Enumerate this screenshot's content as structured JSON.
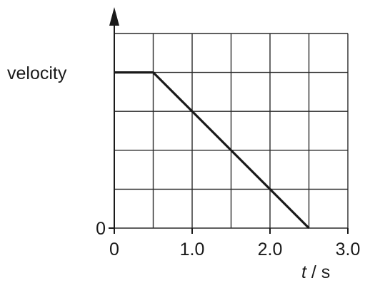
{
  "chart_data": {
    "type": "line",
    "title": "",
    "ylabel": "velocity",
    "xlabel": {
      "variable": "t",
      "unit": "s"
    },
    "xlim": [
      0,
      3.0
    ],
    "ylim": [
      0,
      5
    ],
    "x_ticks": [
      {
        "value": 0,
        "label": "0"
      },
      {
        "value": 1.0,
        "label": "1.0"
      },
      {
        "value": 2.0,
        "label": "2.0"
      },
      {
        "value": 3.0,
        "label": "3.0"
      }
    ],
    "y_ticks": [
      {
        "value": 0,
        "label": "0"
      }
    ],
    "grid": true,
    "grid_x_step": 0.5,
    "grid_y_step": 1,
    "series": [
      {
        "x": [
          0,
          0.5,
          2.5
        ],
        "y": [
          4,
          4,
          0
        ]
      }
    ]
  }
}
